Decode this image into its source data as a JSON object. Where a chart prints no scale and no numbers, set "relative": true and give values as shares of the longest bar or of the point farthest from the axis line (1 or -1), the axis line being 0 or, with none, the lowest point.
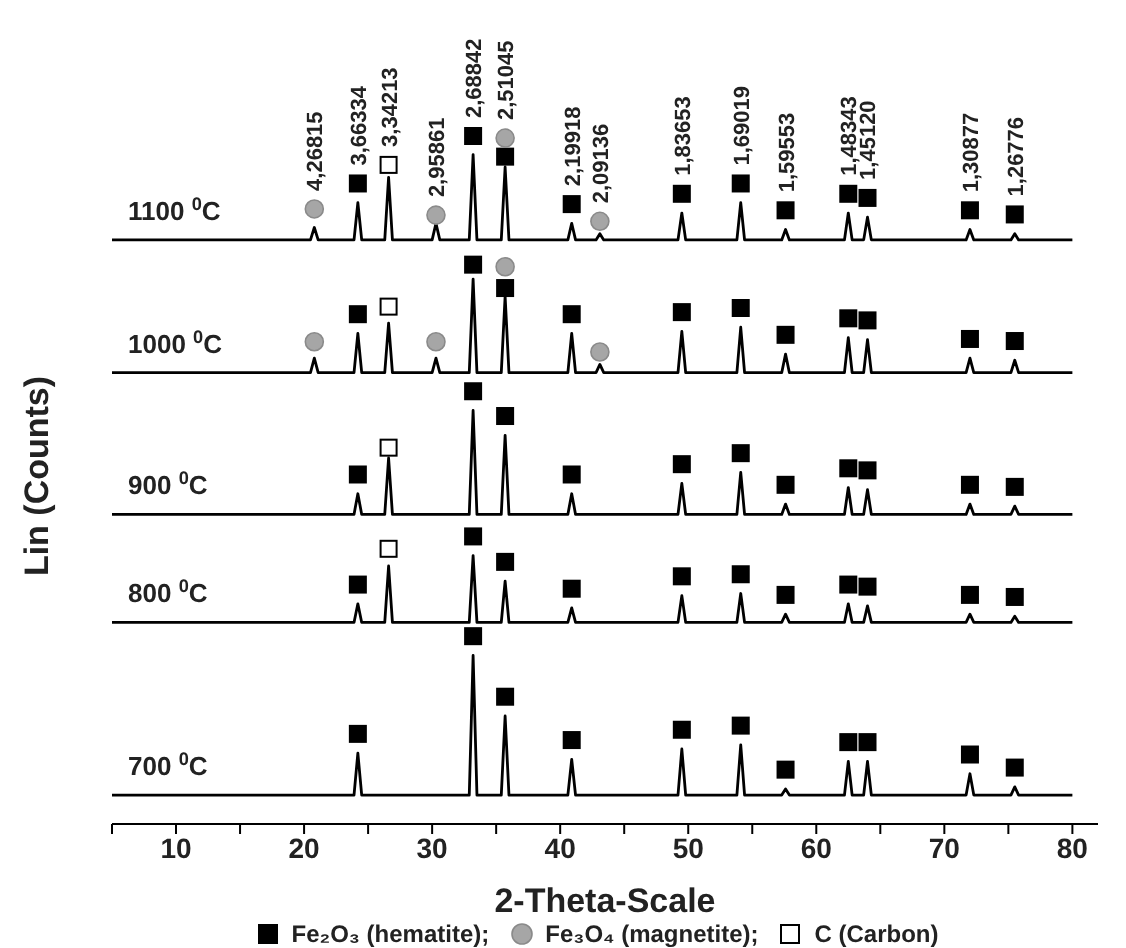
{
  "chart_data": {
    "type": "line",
    "relative": true,
    "xlabel": "2-Theta-Scale",
    "ylabel": "Lin (Counts)",
    "xlim": [
      5,
      82
    ],
    "xticks": [
      {
        "value": 5,
        "label": null
      },
      10,
      {
        "value": 15,
        "label": null
      },
      20,
      {
        "value": 25,
        "label": null
      },
      30,
      {
        "value": 35,
        "label": null
      },
      40,
      {
        "value": 45,
        "label": null
      },
      50,
      {
        "value": 55,
        "label": null
      },
      60,
      {
        "value": 65,
        "label": null
      },
      70,
      {
        "value": 75,
        "label": null
      },
      80
    ],
    "grid": false,
    "legend": "bottom",
    "line_style": "solid",
    "annotations": [
      {
        "text": "4,26815",
        "x": 20.8,
        "y": 0.894
      },
      {
        "text": "3,66334",
        "x": 24.2,
        "y": 0.931
      },
      {
        "text": "3,34213",
        "x": 26.6,
        "y": 0.958
      },
      {
        "text": "2,95861",
        "x": 30.3,
        "y": 0.885
      },
      {
        "text": "2,68842",
        "x": 33.2,
        "y": 1.0
      },
      {
        "text": "2,51045",
        "x": 35.7,
        "y": 0.997
      },
      {
        "text": "2,19918",
        "x": 40.9,
        "y": 0.901
      },
      {
        "text": "2,09136",
        "x": 43.1,
        "y": 0.876
      },
      {
        "text": "1,83653",
        "x": 49.5,
        "y": 0.916
      },
      {
        "text": "1,69019",
        "x": 54.1,
        "y": 0.931
      },
      {
        "text": "1,59553",
        "x": 57.6,
        "y": 0.892
      },
      {
        "text": "1,48343",
        "x": 62.5,
        "y": 0.916
      },
      {
        "text": "1,45120",
        "x": 64.0,
        "y": 0.91
      },
      {
        "text": "1,30877",
        "x": 72.0,
        "y": 0.892
      },
      {
        "text": "1,26776",
        "x": 75.5,
        "y": 0.886
      }
    ],
    "series": [
      {
        "name": "1100 $^{0}$C",
        "color": "#000000",
        "x": [
          5,
          20.5,
          20.8,
          21.1,
          23.9,
          24.2,
          24.5,
          26.3,
          26.6,
          26.9,
          30,
          30.3,
          30.6,
          32.9,
          33.2,
          33.5,
          35.4,
          35.7,
          36,
          40.6,
          40.9,
          41.2,
          42.8,
          43.1,
          43.4,
          49.2,
          49.5,
          49.8,
          53.8,
          54.1,
          54.4,
          57.3,
          57.6,
          57.9,
          62.2,
          62.5,
          62.8,
          63.7,
          64,
          64.3,
          71.7,
          72,
          72.3,
          75.2,
          75.5,
          75.8,
          80
        ],
        "values": [
          0.849,
          0.849,
          0.867,
          0.849,
          0.849,
          0.903,
          0.849,
          0.849,
          0.94,
          0.849,
          0.849,
          0.873,
          0.849,
          0.849,
          0.973,
          0.849,
          0.849,
          0.955,
          0.849,
          0.849,
          0.873,
          0.849,
          0.849,
          0.858,
          0.849,
          0.849,
          0.888,
          0.849,
          0.849,
          0.903,
          0.849,
          0.849,
          0.864,
          0.849,
          0.849,
          0.888,
          0.849,
          0.849,
          0.882,
          0.849,
          0.849,
          0.864,
          0.849,
          0.849,
          0.858,
          0.849,
          0.849
        ]
      },
      {
        "name": "1000 $^{0}$C",
        "color": "#000000",
        "x": [
          5,
          20.5,
          20.8,
          21.1,
          23.9,
          24.2,
          24.5,
          26.3,
          26.6,
          26.9,
          30,
          30.3,
          30.6,
          32.9,
          33.2,
          33.5,
          35.4,
          35.7,
          36,
          40.6,
          40.9,
          41.2,
          42.8,
          43.1,
          43.4,
          49.2,
          49.5,
          49.8,
          53.8,
          54.1,
          54.4,
          57.3,
          57.6,
          57.9,
          62.2,
          62.5,
          62.8,
          63.7,
          64,
          64.3,
          71.7,
          72,
          72.3,
          75.2,
          75.5,
          75.8,
          80
        ],
        "values": [
          0.656,
          0.656,
          0.677,
          0.656,
          0.656,
          0.713,
          0.656,
          0.656,
          0.728,
          0.656,
          0.656,
          0.677,
          0.656,
          0.656,
          0.792,
          0.656,
          0.656,
          0.767,
          0.656,
          0.656,
          0.713,
          0.656,
          0.656,
          0.668,
          0.656,
          0.656,
          0.716,
          0.656,
          0.656,
          0.722,
          0.656,
          0.656,
          0.683,
          0.656,
          0.656,
          0.707,
          0.656,
          0.656,
          0.704,
          0.656,
          0.656,
          0.677,
          0.656,
          0.656,
          0.674,
          0.656,
          0.656
        ]
      },
      {
        "name": "900 $^{0}$C",
        "color": "#000000",
        "x": [
          5,
          23.9,
          24.2,
          24.5,
          26.3,
          26.6,
          26.9,
          32.9,
          33.2,
          33.5,
          35.4,
          35.7,
          36,
          40.6,
          40.9,
          41.2,
          49.2,
          49.5,
          49.8,
          53.8,
          54.1,
          54.4,
          57.3,
          57.6,
          57.9,
          62.2,
          62.5,
          62.8,
          63.7,
          64,
          64.3,
          71.7,
          72,
          72.3,
          75.2,
          75.5,
          75.8,
          80
        ],
        "values": [
          0.45,
          0.45,
          0.48,
          0.45,
          0.45,
          0.532,
          0.45,
          0.45,
          0.601,
          0.45,
          0.45,
          0.565,
          0.45,
          0.45,
          0.48,
          0.45,
          0.45,
          0.495,
          0.45,
          0.45,
          0.511,
          0.45,
          0.45,
          0.465,
          0.45,
          0.45,
          0.489,
          0.45,
          0.45,
          0.486,
          0.45,
          0.45,
          0.465,
          0.45,
          0.45,
          0.462,
          0.45,
          0.45
        ]
      },
      {
        "name": "800 $^{0}$C",
        "color": "#000000",
        "x": [
          5,
          23.9,
          24.2,
          24.5,
          26.3,
          26.6,
          26.9,
          32.9,
          33.2,
          33.5,
          35.4,
          35.7,
          36,
          40.6,
          40.9,
          41.2,
          49.2,
          49.5,
          49.8,
          53.8,
          54.1,
          54.4,
          57.3,
          57.6,
          57.9,
          62.2,
          62.5,
          62.8,
          63.7,
          64,
          64.3,
          71.7,
          72,
          72.3,
          75.2,
          75.5,
          75.8,
          80
        ],
        "values": [
          0.293,
          0.293,
          0.32,
          0.293,
          0.293,
          0.375,
          0.293,
          0.293,
          0.39,
          0.293,
          0.293,
          0.353,
          0.293,
          0.293,
          0.314,
          0.293,
          0.293,
          0.332,
          0.293,
          0.293,
          0.335,
          0.293,
          0.293,
          0.305,
          0.293,
          0.293,
          0.32,
          0.293,
          0.293,
          0.317,
          0.293,
          0.293,
          0.305,
          0.293,
          0.293,
          0.302,
          0.293,
          0.293
        ]
      },
      {
        "name": "700 $^{0}$C",
        "color": "#000000",
        "x": [
          5,
          23.9,
          24.2,
          24.5,
          32.9,
          33.2,
          33.5,
          35.4,
          35.7,
          36,
          40.6,
          40.9,
          41.2,
          49.2,
          49.5,
          49.8,
          53.8,
          54.1,
          54.4,
          57.3,
          57.6,
          57.9,
          62.2,
          62.5,
          62.8,
          63.7,
          64,
          64.3,
          71.7,
          72,
          72.3,
          75.2,
          75.5,
          75.8,
          80
        ],
        "values": [
          0.042,
          0.042,
          0.103,
          0.042,
          0.042,
          0.245,
          0.042,
          0.042,
          0.157,
          0.042,
          0.042,
          0.094,
          0.042,
          0.042,
          0.109,
          0.042,
          0.042,
          0.115,
          0.042,
          0.042,
          0.051,
          0.042,
          0.042,
          0.091,
          0.042,
          0.042,
          0.091,
          0.042,
          0.042,
          0.073,
          0.042,
          0.042,
          0.054,
          0.042,
          0.042
        ]
      },
      {
        "name": "Fe₂O₃ (hematite);",
        "type": "scatter",
        "marker": "square",
        "color": "#000000",
        "x": [
          24.2,
          33.2,
          35.7,
          40.9,
          49.5,
          54.1,
          57.6,
          62.5,
          64,
          72,
          75.5,
          24.2,
          33.2,
          35.7,
          40.9,
          49.5,
          54.1,
          57.6,
          62.5,
          64,
          72,
          75.5,
          24.2,
          33.2,
          35.7,
          40.9,
          49.5,
          54.1,
          57.6,
          62.5,
          64,
          72,
          75.5,
          24.2,
          33.2,
          35.7,
          40.9,
          49.5,
          54.1,
          57.6,
          62.5,
          64,
          72,
          75.5,
          24.2,
          33.2,
          35.7,
          40.9,
          49.5,
          54.1,
          57.6,
          62.5,
          64,
          72,
          75.5
        ],
        "values": [
          0.931,
          1.0,
          0.97,
          0.901,
          0.916,
          0.931,
          0.892,
          0.916,
          0.91,
          0.892,
          0.886,
          0.741,
          0.813,
          0.779,
          0.741,
          0.744,
          0.75,
          0.711,
          0.735,
          0.732,
          0.705,
          0.702,
          0.508,
          0.629,
          0.593,
          0.508,
          0.523,
          0.539,
          0.493,
          0.517,
          0.514,
          0.493,
          0.49,
          0.348,
          0.418,
          0.381,
          0.342,
          0.36,
          0.363,
          0.333,
          0.348,
          0.345,
          0.333,
          0.33,
          0.131,
          0.273,
          0.185,
          0.122,
          0.137,
          0.143,
          0.079,
          0.119,
          0.119,
          0.101,
          0.082
        ]
      },
      {
        "name": "Fe₃O₄ (magnetite);",
        "type": "scatter",
        "marker": "circle",
        "color": "#a6a6a6",
        "x": [
          20.8,
          30.3,
          35.7,
          43.1,
          20.8,
          30.3,
          35.7,
          43.1
        ],
        "values": [
          0.894,
          0.885,
          0.997,
          0.876,
          0.701,
          0.701,
          0.81,
          0.686
        ]
      },
      {
        "name": "C (Carbon)",
        "type": "scatter",
        "marker": "square",
        "color": "#ffffff",
        "x": [
          26.6,
          26.6,
          26.6,
          26.6
        ],
        "values": [
          0.958,
          0.752,
          0.547,
          0.4
        ]
      }
    ]
  }
}
